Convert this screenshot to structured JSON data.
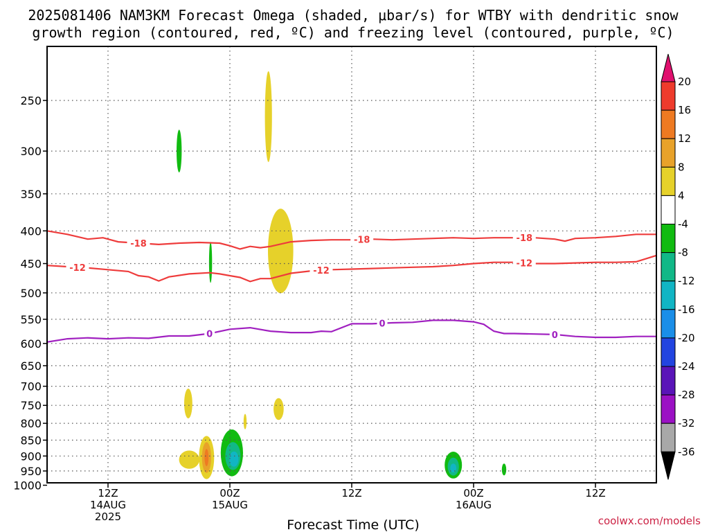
{
  "chart_data": {
    "type": "contour",
    "title_line1": "2025081406 NAM3KM Forecast Omega (shaded, μbar/s) for WTBY with dendritic snow",
    "title_line2": "growth region (contoured, red, ºC) and freezing level (contoured, purple, ºC)",
    "xlabel": "Forecast Time (UTC)",
    "credit": "coolwx.com/models",
    "x_ticks": [
      {
        "hour": 6,
        "lines": [
          "12Z",
          "14AUG",
          "2025"
        ]
      },
      {
        "hour": 18,
        "lines": [
          "00Z",
          "15AUG"
        ]
      },
      {
        "hour": 30,
        "lines": [
          "12Z"
        ]
      },
      {
        "hour": 42,
        "lines": [
          "00Z",
          "16AUG"
        ]
      },
      {
        "hour": 54,
        "lines": [
          "12Z"
        ]
      }
    ],
    "x_range_hours": [
      0,
      60
    ],
    "y_ticks": [
      "250",
      "300",
      "350",
      "400",
      "450",
      "500",
      "550",
      "600",
      "650",
      "700",
      "750",
      "800",
      "850",
      "900",
      "950",
      "1000"
    ],
    "colorbar": {
      "labels": [
        "20",
        "16",
        "12",
        "8",
        "4",
        "-4",
        "-8",
        "-12",
        "-16",
        "-20",
        "-24",
        "-28",
        "-32",
        "-36"
      ],
      "colors": {
        "20_top": "#e0106e",
        "16_20": "#ee3b2c",
        "12_16": "#ee7a22",
        "8_12": "#e8a22a",
        "4_8": "#e6d12a",
        "neg4_4": "#ffffff",
        "neg8_neg4": "#11bb11",
        "neg12_neg8": "#11b887",
        "neg16_neg12": "#11b5c4",
        "neg20_neg16": "#1a8ee8",
        "neg24_neg20": "#2244e0",
        "neg28_neg24": "#5a14b8",
        "neg32_neg28": "#9b11c4",
        "neg36_neg32": "#a8a8a8",
        "bottom": "#000000"
      }
    },
    "contours": {
      "dgz_neg18": {
        "label": "-18",
        "color": "#ee3b3b",
        "points": [
          [
            0,
            400
          ],
          [
            2,
            405
          ],
          [
            4,
            412
          ],
          [
            5.5,
            410
          ],
          [
            7,
            416
          ],
          [
            9,
            418
          ],
          [
            11,
            420
          ],
          [
            13,
            418
          ],
          [
            15,
            417
          ],
          [
            17,
            418
          ],
          [
            18,
            422
          ],
          [
            19,
            427
          ],
          [
            20,
            423
          ],
          [
            21,
            425
          ],
          [
            22,
            423
          ],
          [
            24,
            416
          ],
          [
            26,
            414
          ],
          [
            28,
            413
          ],
          [
            30,
            413
          ],
          [
            32,
            412
          ],
          [
            34,
            413
          ],
          [
            36,
            412
          ],
          [
            38,
            411
          ],
          [
            40,
            410
          ],
          [
            42,
            411
          ],
          [
            44,
            410
          ],
          [
            46,
            410
          ],
          [
            48,
            410
          ],
          [
            50,
            412
          ],
          [
            51,
            415
          ],
          [
            52,
            411
          ],
          [
            54,
            410
          ],
          [
            56,
            408
          ],
          [
            58,
            405
          ],
          [
            60,
            405
          ]
        ],
        "label_hours": [
          9,
          31,
          47
        ]
      },
      "dgz_neg12": {
        "label": "-12",
        "color": "#ee3b3b",
        "points": [
          [
            0,
            453
          ],
          [
            2,
            455
          ],
          [
            4,
            457
          ],
          [
            6,
            460
          ],
          [
            8,
            463
          ],
          [
            9,
            470
          ],
          [
            10,
            472
          ],
          [
            11,
            479
          ],
          [
            12,
            472
          ],
          [
            14,
            467
          ],
          [
            16,
            465
          ],
          [
            17,
            467
          ],
          [
            18,
            470
          ],
          [
            19,
            473
          ],
          [
            20,
            480
          ],
          [
            21,
            475
          ],
          [
            22,
            475
          ],
          [
            24,
            466
          ],
          [
            26,
            462
          ],
          [
            28,
            460
          ],
          [
            30,
            459
          ],
          [
            32,
            458
          ],
          [
            34,
            457
          ],
          [
            36,
            456
          ],
          [
            38,
            455
          ],
          [
            40,
            453
          ],
          [
            42,
            450
          ],
          [
            44,
            448
          ],
          [
            46,
            448
          ],
          [
            48,
            450
          ],
          [
            50,
            450
          ],
          [
            52,
            449
          ],
          [
            54,
            448
          ],
          [
            56,
            448
          ],
          [
            58,
            447
          ],
          [
            60,
            437
          ]
        ],
        "label_hours": [
          3,
          27,
          47
        ]
      },
      "frz_0": {
        "label": "0",
        "color": "#a020c0",
        "points": [
          [
            0,
            597
          ],
          [
            2,
            590
          ],
          [
            4,
            588
          ],
          [
            6,
            590
          ],
          [
            8,
            588
          ],
          [
            10,
            589
          ],
          [
            12,
            584
          ],
          [
            14,
            584
          ],
          [
            16,
            579
          ],
          [
            18,
            570
          ],
          [
            20,
            567
          ],
          [
            22,
            574
          ],
          [
            24,
            577
          ],
          [
            26,
            577
          ],
          [
            27,
            574
          ],
          [
            28,
            575
          ],
          [
            30,
            559
          ],
          [
            32,
            559
          ],
          [
            34,
            557
          ],
          [
            36,
            556
          ],
          [
            38,
            552
          ],
          [
            40,
            552
          ],
          [
            42,
            555
          ],
          [
            43,
            560
          ],
          [
            44,
            574
          ],
          [
            45,
            579
          ],
          [
            46,
            579
          ],
          [
            48,
            580
          ],
          [
            50,
            581
          ],
          [
            52,
            585
          ],
          [
            54,
            587
          ],
          [
            56,
            587
          ],
          [
            58,
            585
          ],
          [
            60,
            585
          ]
        ],
        "label_hours": [
          16,
          33,
          50
        ]
      }
    },
    "omega_shaded": [
      {
        "name": "gr-300",
        "hour": 13.0,
        "p": 300,
        "half_h": 0.25,
        "half_p": 23,
        "color": "#11bb11"
      },
      {
        "name": "ye-265",
        "hour": 21.8,
        "p": 265,
        "half_h": 0.35,
        "half_p": 43,
        "color": "#e6d12a"
      },
      {
        "name": "gr-448",
        "hour": 16.1,
        "p": 448,
        "half_h": 0.15,
        "half_p": 33,
        "color": "#11bb11"
      },
      {
        "name": "ye-430",
        "hour": 23.0,
        "p": 430,
        "half_h": 1.25,
        "half_p": 65,
        "color": "#e6d12a"
      },
      {
        "name": "ye-750",
        "hour": 13.9,
        "p": 745,
        "half_h": 0.4,
        "half_p": 40,
        "color": "#e6d12a"
      },
      {
        "name": "ye-790",
        "hour": 19.5,
        "p": 795,
        "half_h": 0.15,
        "half_p": 22,
        "color": "#e6d12a"
      },
      {
        "name": "ye-760",
        "hour": 22.8,
        "p": 760,
        "half_h": 0.5,
        "half_p": 30,
        "color": "#e6d12a"
      },
      {
        "name": "ye-905",
        "hour": 15.7,
        "p": 905,
        "half_h": 0.75,
        "half_p": 70,
        "color": "#e6d12a"
      },
      {
        "name": "ye-912",
        "hour": 14.0,
        "p": 912,
        "half_h": 1.0,
        "half_p": 30,
        "color": "#e6d12a"
      },
      {
        "name": "or-905",
        "hour": 15.7,
        "p": 905,
        "half_h": 0.45,
        "half_p": 50,
        "color": "#e8a22a"
      },
      {
        "name": "rd-905",
        "hour": 15.7,
        "p": 905,
        "half_h": 0.2,
        "half_p": 28,
        "color": "#ee7a22"
      },
      {
        "name": "gr-890",
        "hour": 18.2,
        "p": 890,
        "half_h": 1.1,
        "half_p": 75,
        "color": "#11bb11"
      },
      {
        "name": "tl-900",
        "hour": 18.3,
        "p": 900,
        "half_h": 0.75,
        "half_p": 45,
        "color": "#11b887"
      },
      {
        "name": "cy-910",
        "hour": 18.4,
        "p": 910,
        "half_h": 0.45,
        "half_p": 25,
        "color": "#11b5c4"
      },
      {
        "name": "gr-930",
        "hour": 40.0,
        "p": 930,
        "half_h": 0.85,
        "half_p": 45,
        "color": "#11bb11"
      },
      {
        "name": "tl-935",
        "hour": 40.0,
        "p": 935,
        "half_h": 0.55,
        "half_p": 30,
        "color": "#11b887"
      },
      {
        "name": "cy-940",
        "hour": 40.0,
        "p": 940,
        "half_h": 0.3,
        "half_p": 15,
        "color": "#11b5c4"
      },
      {
        "name": "gr-945",
        "hour": 45.0,
        "p": 945,
        "half_h": 0.22,
        "half_p": 20,
        "color": "#11bb11"
      }
    ],
    "ground_color": "#a0522d"
  }
}
